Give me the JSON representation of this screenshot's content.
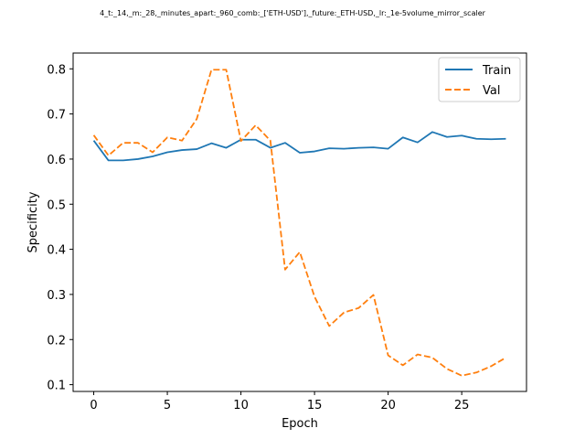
{
  "chart_data": {
    "type": "line",
    "title": "4_t:_14,_m:_28,_minutes_apart:_960_comb:_['ETH-USD'],_future:_ETH-USD,_lr:_1e-5volume_mirror_scaler",
    "xlabel": "Epoch",
    "ylabel": "Specificity",
    "xlim": [
      -1.4,
      29.4
    ],
    "ylim": [
      0.085,
      0.835
    ],
    "xticks": [
      0,
      5,
      10,
      15,
      20,
      25
    ],
    "yticks": [
      0.1,
      0.2,
      0.3,
      0.4,
      0.5,
      0.6,
      0.7,
      0.8
    ],
    "ytick_labels": [
      "0.1",
      "0.2",
      "0.3",
      "0.4",
      "0.5",
      "0.6",
      "0.7",
      "0.8"
    ],
    "legend_position": "top-right",
    "x": [
      0,
      1,
      2,
      3,
      4,
      5,
      6,
      7,
      8,
      9,
      10,
      11,
      12,
      13,
      14,
      15,
      16,
      17,
      18,
      19,
      20,
      21,
      22,
      23,
      24,
      25,
      26,
      27,
      28
    ],
    "series": [
      {
        "name": "Train",
        "color": "#1f77b4",
        "style": "solid",
        "values": [
          0.641,
          0.597,
          0.597,
          0.6,
          0.606,
          0.615,
          0.62,
          0.622,
          0.635,
          0.625,
          0.643,
          0.643,
          0.625,
          0.636,
          0.614,
          0.617,
          0.624,
          0.623,
          0.625,
          0.626,
          0.623,
          0.648,
          0.637,
          0.66,
          0.649,
          0.652,
          0.645,
          0.644,
          0.645
        ]
      },
      {
        "name": "Val",
        "color": "#ff7f0e",
        "style": "dashed",
        "values": [
          0.653,
          0.608,
          0.636,
          0.636,
          0.615,
          0.648,
          0.641,
          0.689,
          0.798,
          0.798,
          0.64,
          0.675,
          0.641,
          0.355,
          0.394,
          0.295,
          0.23,
          0.26,
          0.27,
          0.299,
          0.165,
          0.143,
          0.167,
          0.16,
          0.135,
          0.12,
          0.127,
          0.141,
          0.16
        ]
      }
    ]
  }
}
